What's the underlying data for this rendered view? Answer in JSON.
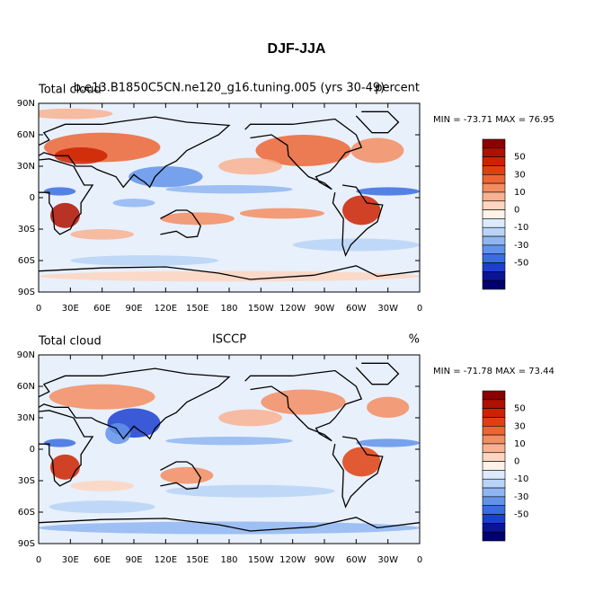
{
  "title": "DJF-JJA",
  "lat_labels": [
    "90N",
    "60N",
    "30N",
    "0",
    "30S",
    "60S",
    "90S"
  ],
  "lon_labels": [
    "0",
    "30E",
    "60E",
    "90E",
    "120E",
    "150E",
    "180",
    "150W",
    "120W",
    "90W",
    "60W",
    "30W",
    "0"
  ],
  "colorbar": {
    "colors": [
      "#8b0000",
      "#b01000",
      "#cc2200",
      "#e04010",
      "#ec6535",
      "#f38d62",
      "#f8b291",
      "#fdd5c0",
      "#fff2e8",
      "#dcebfb",
      "#b9d4f7",
      "#8fb6f1",
      "#6293ea",
      "#3a6de0",
      "#1c3fd0",
      "#0a1596",
      "#000070"
    ],
    "labels": [
      50,
      30,
      10,
      0,
      -10,
      -30,
      -50
    ]
  },
  "panels": [
    {
      "left": "Total cloud",
      "center": "b.e13.B1850C5CN.ne120_g16.tuning.005 (yrs 30-49)",
      "right": "percent",
      "stats": "MIN = -73.71 MAX =  76.95"
    },
    {
      "left": "Total cloud",
      "center": "ISCCP",
      "right": "%",
      "stats": "MIN = -71.78 MAX =  73.44"
    }
  ]
}
